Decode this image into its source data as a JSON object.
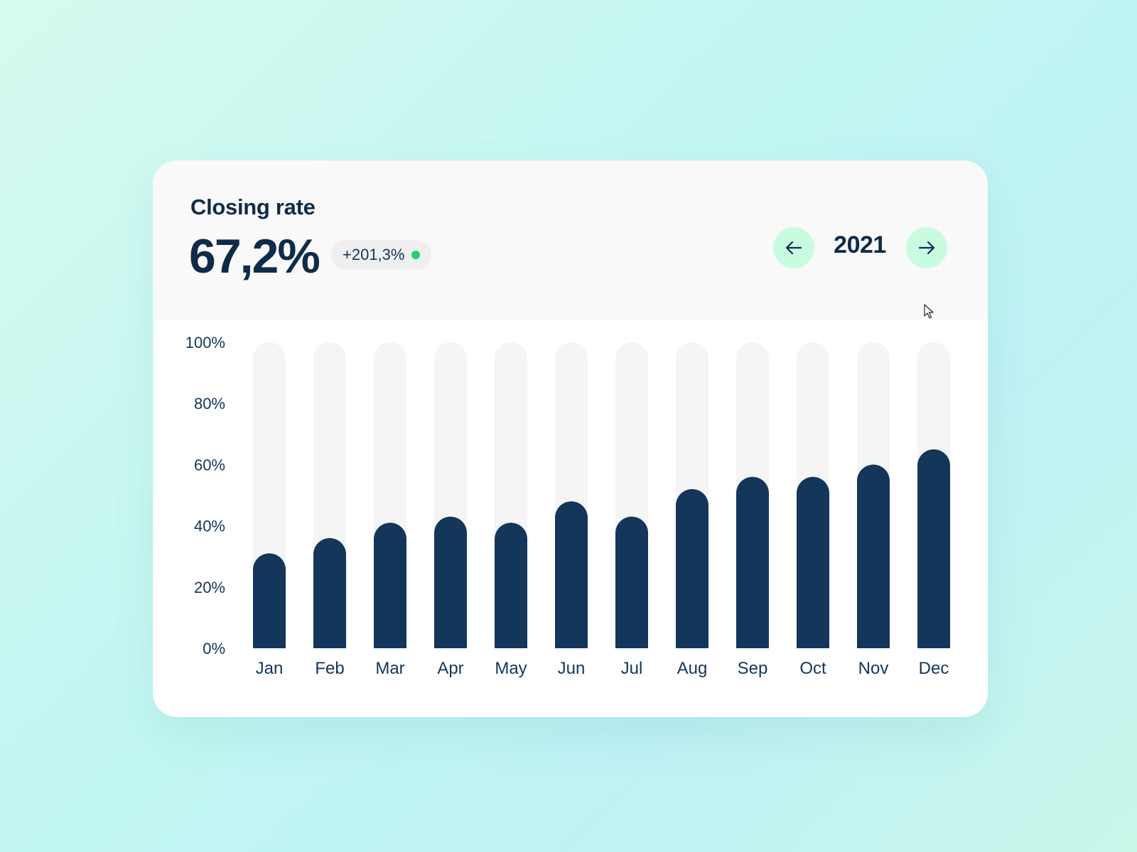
{
  "header": {
    "title": "Closing rate",
    "value": "67,2%",
    "change": "+201,3%",
    "year": "2021",
    "prev_icon": "arrow-left-icon",
    "next_icon": "arrow-right-icon"
  },
  "colors": {
    "bar": "#13365a",
    "track": "#f5f5f5",
    "accent": "#c9fbe0",
    "positive": "#22d36a"
  },
  "chart_data": {
    "type": "bar",
    "categories": [
      "Jan",
      "Feb",
      "Mar",
      "Apr",
      "May",
      "Jun",
      "Jul",
      "Aug",
      "Sep",
      "Oct",
      "Nov",
      "Dec"
    ],
    "values": [
      31,
      36,
      41,
      43,
      41,
      48,
      43,
      52,
      56,
      56,
      60,
      65
    ],
    "y_ticks": [
      "0%",
      "20%",
      "40%",
      "60%",
      "80%",
      "100%"
    ],
    "ylim": [
      0,
      100
    ],
    "title": "Closing rate",
    "xlabel": "",
    "ylabel": "",
    "grid": false,
    "legend": "none"
  }
}
